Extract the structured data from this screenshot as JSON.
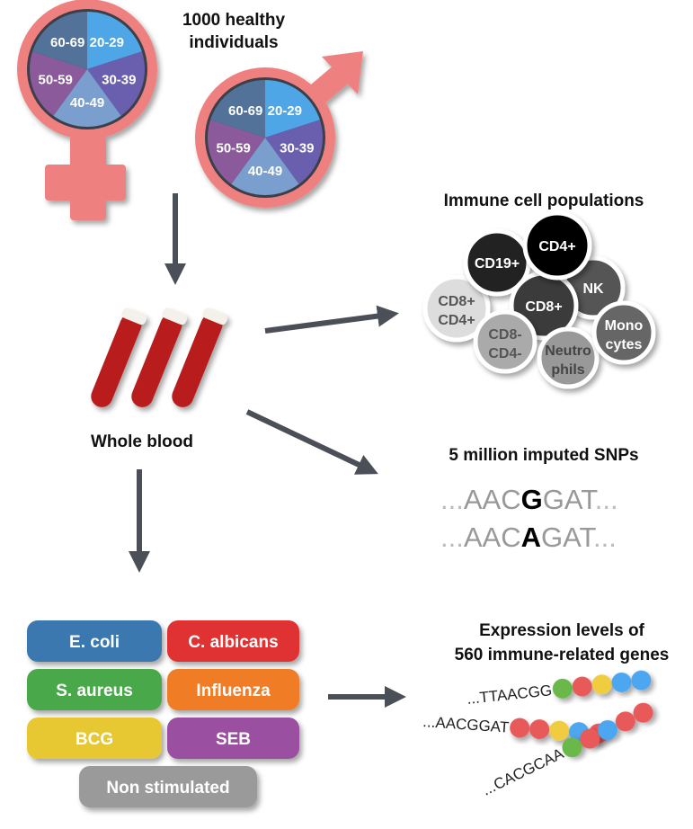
{
  "title": [
    "1000 healthy",
    "individuals"
  ],
  "age_groups": [
    "20-29",
    "30-39",
    "40-49",
    "50-59",
    "60-69"
  ],
  "age_colors": [
    "#4ea6e6",
    "#6a5fae",
    "#7a9fcf",
    "#8a5a9a",
    "#52729a"
  ],
  "symbol_color": "#ee8080",
  "whole_blood": "Whole blood",
  "immune": {
    "title": "Immune cell populations",
    "cells": [
      {
        "l1": "CD19+",
        "l2": ""
      },
      {
        "l1": "CD4+",
        "l2": ""
      },
      {
        "l1": "NK",
        "l2": ""
      },
      {
        "l1": "CD8+",
        "l2": "CD4+"
      },
      {
        "l1": "CD8+",
        "l2": ""
      },
      {
        "l1": "CD8-",
        "l2": "CD4-"
      },
      {
        "l1": "Neutro",
        "l2": "phils"
      },
      {
        "l1": "Mono",
        "l2": "cytes"
      }
    ]
  },
  "snps": {
    "title": "5 million imputed SNPs",
    "seq1": {
      "pre": "AAC",
      "alt": "G",
      "post": "GAT"
    },
    "seq2": {
      "pre": "AAC",
      "alt": "A",
      "post": "GAT"
    },
    "ellipsis": "..."
  },
  "stimuli": [
    {
      "label": "E. coli",
      "color": "#3a78b0"
    },
    {
      "label": "C. albicans",
      "color": "#e03232"
    },
    {
      "label": "S. aureus",
      "color": "#4aa84a"
    },
    {
      "label": "Influenza",
      "color": "#f07c28"
    },
    {
      "label": "BCG",
      "color": "#e8c830"
    },
    {
      "label": "SEB",
      "color": "#9a50a0"
    },
    {
      "label": "Non stimulated",
      "color": "#9a9a9a"
    }
  ],
  "expression": {
    "title": [
      "Expression levels of",
      "560 immune-related genes"
    ],
    "genes": [
      "...TTAACGG",
      "...AACGGAT",
      "...CACGCAA"
    ]
  }
}
